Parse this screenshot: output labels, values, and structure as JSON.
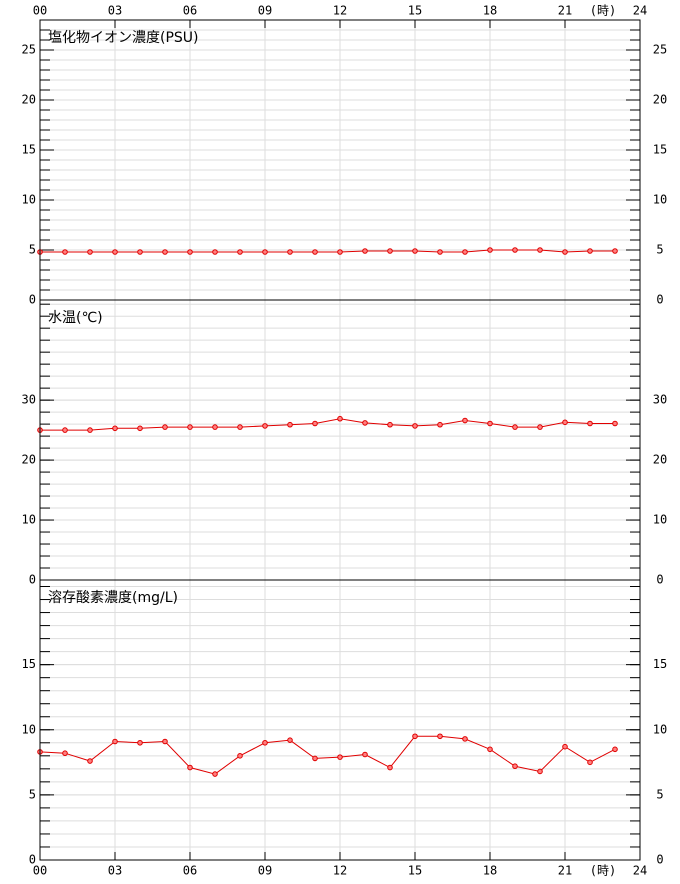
{
  "x_axis": {
    "xlim": [
      0,
      24
    ],
    "xticks": [
      {
        "value": 0,
        "label": "00"
      },
      {
        "value": 3,
        "label": "03"
      },
      {
        "value": 6,
        "label": "06"
      },
      {
        "value": 9,
        "label": "09"
      },
      12,
      15,
      18,
      21,
      24
    ],
    "unit": "(時)"
  },
  "chart_data": [
    {
      "type": "line",
      "title": "塩化物イオン濃度(PSU)",
      "color": "#e00000",
      "x": [
        0,
        1,
        2,
        3,
        4,
        5,
        6,
        7,
        8,
        9,
        10,
        11,
        12,
        13,
        14,
        15,
        16,
        17,
        18,
        19,
        20,
        21,
        22,
        23
      ],
      "values": [
        4.8,
        4.8,
        4.8,
        4.8,
        4.8,
        4.8,
        4.8,
        4.8,
        4.8,
        4.8,
        4.8,
        4.8,
        4.8,
        4.9,
        4.9,
        4.9,
        4.8,
        4.8,
        5.0,
        5.0,
        5.0,
        4.8,
        4.9,
        4.9
      ],
      "ylim": [
        0,
        28
      ],
      "yticks": [
        0,
        5,
        10,
        15,
        20,
        25
      ],
      "grid": true
    },
    {
      "type": "line",
      "title": "水温(℃)",
      "color": "#e00000",
      "x": [
        0,
        1,
        2,
        3,
        4,
        5,
        6,
        7,
        8,
        9,
        10,
        11,
        12,
        13,
        14,
        15,
        16,
        17,
        18,
        19,
        20,
        21,
        22,
        23
      ],
      "values": [
        25.0,
        25.0,
        25.0,
        25.3,
        25.3,
        25.5,
        25.5,
        25.5,
        25.5,
        25.7,
        25.9,
        26.1,
        26.9,
        26.2,
        25.9,
        25.7,
        25.9,
        26.6,
        26.1,
        25.5,
        25.5,
        26.3,
        26.1,
        26.1
      ],
      "ylim": [
        0,
        46.7
      ],
      "yticks": [
        0,
        10,
        20,
        30
      ],
      "grid": true
    },
    {
      "type": "line",
      "title": "溶存酸素濃度(mg/L)",
      "color": "#e00000",
      "x": [
        0,
        1,
        2,
        3,
        4,
        5,
        6,
        7,
        8,
        9,
        10,
        11,
        12,
        13,
        14,
        15,
        16,
        17,
        18,
        19,
        20,
        21,
        22,
        23
      ],
      "values": [
        8.3,
        8.2,
        7.6,
        9.1,
        9.0,
        9.1,
        7.1,
        6.6,
        8.0,
        9.0,
        9.2,
        7.8,
        7.9,
        8.1,
        7.1,
        9.5,
        9.5,
        9.3,
        8.5,
        7.2,
        6.8,
        8.7,
        7.5,
        8.5
      ],
      "ylim": [
        0,
        21.5
      ],
      "yticks": [
        0,
        5,
        10,
        15
      ],
      "grid": true
    }
  ]
}
